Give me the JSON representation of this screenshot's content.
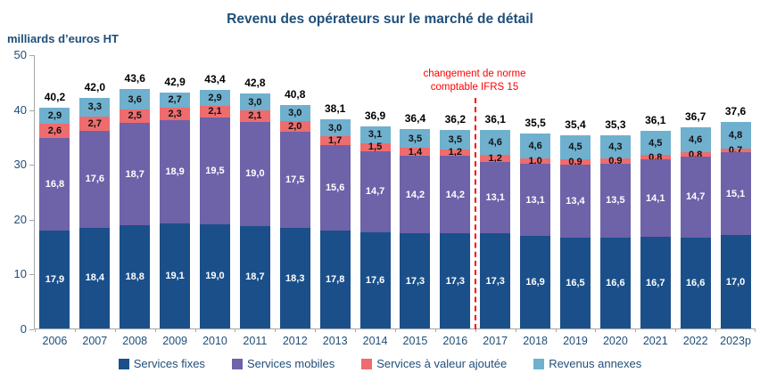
{
  "title": "Revenu des opérateurs sur le marché de détail",
  "unit_label": "milliards d’euros HT",
  "annotation": {
    "line1": "changement de norme",
    "line2": "comptable IFRS 15",
    "after_category": "2016"
  },
  "colors": {
    "title": "#1F4E79",
    "axis_label": "#1F4E79",
    "axis_line": "#A6A6A6",
    "total_label": "#000000",
    "annotation": "#FF0000"
  },
  "chart_data": {
    "type": "bar",
    "stacked": true,
    "title": "Revenu des opérateurs sur le marché de détail",
    "ylabel": "milliards d’euros HT",
    "xlabel": "",
    "ylim": [
      0,
      50
    ],
    "y_ticks": [
      0,
      10,
      20,
      30,
      40,
      50
    ],
    "grid": false,
    "legend_position": "bottom",
    "decimal_separator": ",",
    "categories": [
      "2006",
      "2007",
      "2008",
      "2009",
      "2010",
      "2011",
      "2012",
      "2013",
      "2014",
      "2015",
      "2016",
      "2017",
      "2018",
      "2019",
      "2020",
      "2021",
      "2022",
      "2023p"
    ],
    "series": [
      {
        "name": "Services fixes",
        "slug": "services-fixes",
        "color": "#1B4F8A",
        "label_color": "#FFFFFF",
        "values": [
          17.9,
          18.4,
          18.8,
          19.1,
          19.0,
          18.7,
          18.3,
          17.8,
          17.6,
          17.3,
          17.3,
          17.3,
          16.9,
          16.5,
          16.6,
          16.7,
          16.6,
          17.0
        ]
      },
      {
        "name": "Services mobiles",
        "slug": "services-mobiles",
        "color": "#6E62A9",
        "label_color": "#FFFFFF",
        "values": [
          16.8,
          17.6,
          18.7,
          18.9,
          19.5,
          19.0,
          17.5,
          15.6,
          14.7,
          14.2,
          14.2,
          13.1,
          13.1,
          13.4,
          13.5,
          14.1,
          14.7,
          15.1
        ]
      },
      {
        "name": "Services à valeur ajoutée",
        "slug": "services-valeur-ajoutee",
        "color": "#EE6C6E",
        "label_color": "#111111",
        "values": [
          2.6,
          2.7,
          2.5,
          2.3,
          2.1,
          2.1,
          2.0,
          1.7,
          1.5,
          1.4,
          1.2,
          1.2,
          1.0,
          0.9,
          0.9,
          0.8,
          0.8,
          0.7
        ]
      },
      {
        "name": "Revenus annexes",
        "slug": "revenus-annexes",
        "color": "#6FB0CE",
        "label_color": "#111111",
        "values": [
          2.9,
          3.3,
          3.6,
          2.7,
          2.9,
          3.0,
          3.0,
          3.0,
          3.1,
          3.5,
          3.5,
          4.6,
          4.6,
          4.5,
          4.3,
          4.5,
          4.6,
          4.8
        ]
      }
    ],
    "totals": [
      40.2,
      42.0,
      43.6,
      42.9,
      43.4,
      42.8,
      40.8,
      38.1,
      36.9,
      36.4,
      36.2,
      36.1,
      35.5,
      35.4,
      35.3,
      36.1,
      36.7,
      37.6
    ]
  }
}
